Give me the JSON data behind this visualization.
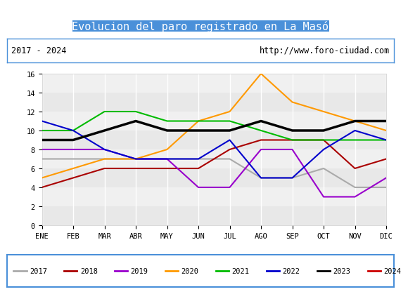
{
  "title": "Evolucion del paro registrado en La Masó",
  "subtitle_left": "2017 - 2024",
  "subtitle_right": "http://www.foro-ciudad.com",
  "title_bg_color": "#4a90d9",
  "title_text_color": "white",
  "months": [
    "ENE",
    "FEB",
    "MAR",
    "ABR",
    "MAY",
    "JUN",
    "JUL",
    "AGO",
    "SEP",
    "OCT",
    "NOV",
    "DIC"
  ],
  "ylim": [
    0,
    16
  ],
  "yticks": [
    0,
    2,
    4,
    6,
    8,
    10,
    12,
    14,
    16
  ],
  "series": {
    "2017": {
      "color": "#aaaaaa",
      "values": [
        7,
        7,
        7,
        7,
        7,
        7,
        7,
        5,
        5,
        6,
        4,
        4
      ]
    },
    "2018": {
      "color": "#aa0000",
      "values": [
        4,
        5,
        6,
        6,
        6,
        6,
        8,
        9,
        9,
        9,
        6,
        7
      ]
    },
    "2019": {
      "color": "#9900cc",
      "values": [
        8,
        8,
        8,
        7,
        7,
        4,
        4,
        8,
        8,
        3,
        3,
        5
      ]
    },
    "2020": {
      "color": "#ff9900",
      "values": [
        5,
        6,
        7,
        7,
        8,
        11,
        12,
        16,
        13,
        12,
        11,
        10
      ]
    },
    "2021": {
      "color": "#00bb00",
      "values": [
        10,
        10,
        12,
        12,
        11,
        11,
        11,
        10,
        9,
        9,
        9,
        9
      ]
    },
    "2022": {
      "color": "#0000cc",
      "values": [
        11,
        10,
        8,
        7,
        7,
        7,
        9,
        5,
        5,
        8,
        10,
        9
      ]
    },
    "2023": {
      "color": "#000000",
      "values": [
        9,
        9,
        10,
        11,
        10,
        10,
        10,
        11,
        10,
        10,
        11,
        11
      ]
    },
    "2024": {
      "color": "#cc0000",
      "values": [
        null,
        null,
        null,
        null,
        null,
        null,
        null,
        null,
        null,
        null,
        null,
        null
      ]
    }
  },
  "legend_order": [
    "2017",
    "2018",
    "2019",
    "2020",
    "2021",
    "2022",
    "2023",
    "2024"
  ]
}
